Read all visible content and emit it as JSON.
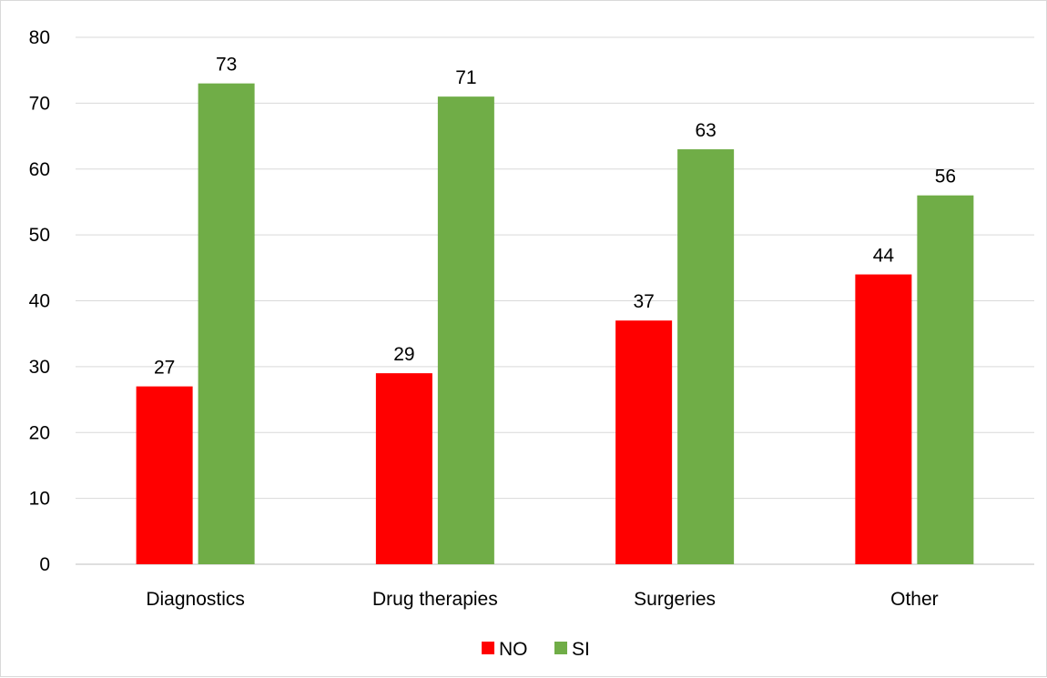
{
  "chart_data": {
    "type": "bar",
    "title": "",
    "xlabel": "",
    "ylabel": "",
    "categories": [
      "Diagnostics",
      "Drug therapies",
      "Surgeries",
      "Other"
    ],
    "series": [
      {
        "name": "NO",
        "color": "#ff0000",
        "values": [
          27,
          29,
          37,
          44
        ]
      },
      {
        "name": "SI",
        "color": "#70ad47",
        "values": [
          73,
          71,
          63,
          56
        ]
      }
    ],
    "ylim": [
      0,
      80
    ],
    "yticks": [
      0,
      10,
      20,
      30,
      40,
      50,
      60,
      70,
      80
    ],
    "grid": true,
    "legend_position": "bottom",
    "data_labels": true
  }
}
